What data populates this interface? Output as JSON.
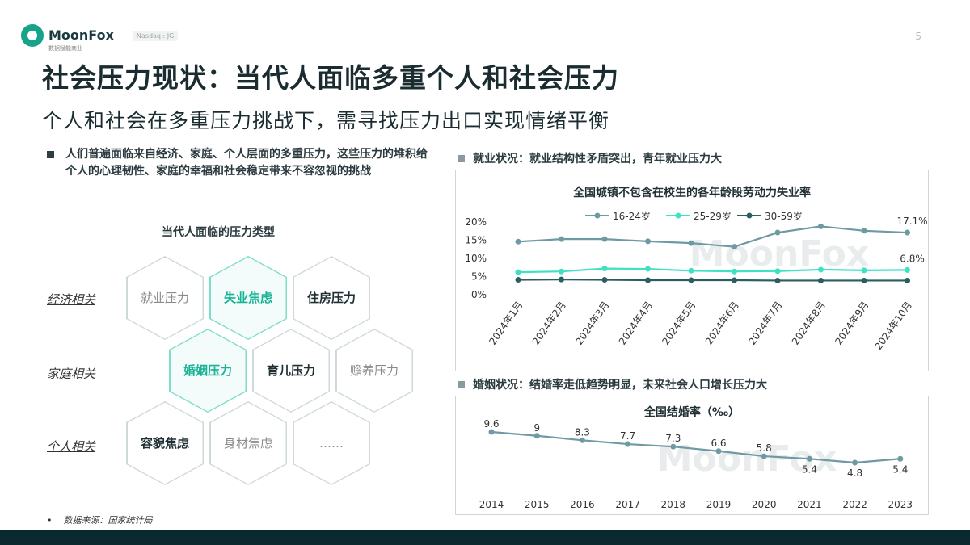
{
  "brand": {
    "name": "MoonFox",
    "tagline": "数据赋能商业",
    "exchange": "Nasdaq : JG",
    "page": "5",
    "accent": "#16a389"
  },
  "title": "社会压力现状：当代人面临多重个人和社会压力",
  "subtitle": "个人和社会在多重压力挑战下，需寻找压力出口实现情绪平衡",
  "left": {
    "bullet": "人们普遍面临来自经济、家庭、个人层面的多重压力，这些压力的堆积给个人的心理韧性、家庭的幸福和社会稳定带来不容忽视的挑战",
    "diagram_title": "当代人面临的压力类型",
    "rows": [
      "经济相关",
      "家庭相关",
      "个人相关"
    ],
    "hexagons": [
      {
        "l1": "就业",
        "l2": "压力",
        "style": "gray"
      },
      {
        "l1": "失业",
        "l2": "焦虑",
        "style": "hl"
      },
      {
        "l1": "住房",
        "l2": "压力",
        "style": "dark"
      },
      {
        "l1": "婚姻",
        "l2": "压力",
        "style": "hl"
      },
      {
        "l1": "育儿",
        "l2": "压力",
        "style": "dark"
      },
      {
        "l1": "赡养",
        "l2": "压力",
        "style": "gray"
      },
      {
        "l1": "容貌",
        "l2": "焦虑",
        "style": "dark"
      },
      {
        "l1": "身材",
        "l2": "焦虑",
        "style": "gray"
      },
      {
        "l1": "……",
        "l2": "",
        "style": "gray"
      }
    ],
    "source": "数据来源：国家统计局"
  },
  "right": {
    "bullet1": "就业状况：就业结构性矛盾突出，青年就业压力大",
    "bullet2": "婚姻状况：结婚率走低趋势明显，未来社会人口增长压力大"
  },
  "watermark": "MoonFox",
  "chart_data": [
    {
      "type": "line",
      "title": "全国城镇不包含在校生的各年龄段劳动力失业率",
      "categories": [
        "2024年1月",
        "2024年2月",
        "2024年3月",
        "2024年4月",
        "2024年5月",
        "2024年6月",
        "2024年7月",
        "2024年8月",
        "2024年9月",
        "2024年10月"
      ],
      "series": [
        {
          "name": "16-24岁",
          "color": "#6e9aa3",
          "values": [
            14.6,
            15.3,
            15.3,
            14.7,
            14.2,
            13.2,
            17.1,
            18.8,
            17.6,
            17.1
          ]
        },
        {
          "name": "25-29岁",
          "color": "#3fe0c4",
          "values": [
            6.2,
            6.4,
            7.2,
            7.1,
            6.6,
            6.4,
            6.5,
            6.9,
            6.7,
            6.8
          ]
        },
        {
          "name": "30-59岁",
          "color": "#2c5d62",
          "values": [
            4.1,
            4.2,
            4.1,
            4.0,
            4.0,
            4.0,
            3.9,
            3.9,
            3.9,
            3.9
          ]
        }
      ],
      "yticks": [
        "20%",
        "15%",
        "10%",
        "5%",
        "0%"
      ],
      "ylim": [
        0,
        20
      ],
      "data_labels": [
        {
          "series": 0,
          "index": 9,
          "text": "17.1%"
        },
        {
          "series": 1,
          "index": 9,
          "text": "6.8%"
        }
      ],
      "legend": "top"
    },
    {
      "type": "line",
      "title": "全国结婚率（‰）",
      "categories": [
        "2014",
        "2015",
        "2016",
        "2017",
        "2018",
        "2019",
        "2020",
        "2021",
        "2022",
        "2023"
      ],
      "values": [
        9.6,
        9,
        8.3,
        7.7,
        7.3,
        6.6,
        5.8,
        5.4,
        4.8,
        5.4
      ],
      "labels": [
        "9.6",
        "9",
        "8.3",
        "7.7",
        "7.3",
        "6.6",
        "5.8",
        "5.4",
        "4.8",
        "5.4"
      ],
      "color": "#6e9aa3"
    }
  ]
}
